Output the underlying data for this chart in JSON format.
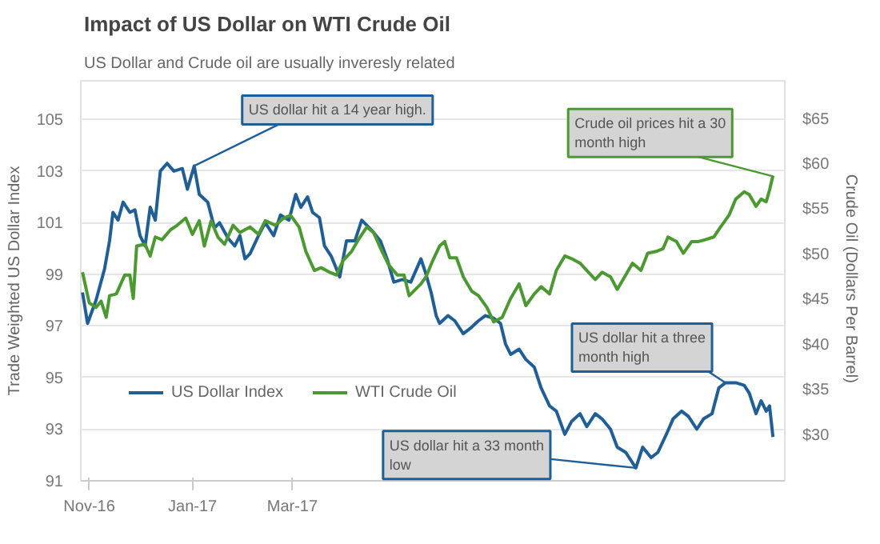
{
  "chart_data": {
    "type": "line",
    "title": "Impact of US Dollar on WTI Crude Oil",
    "subtitle": "US Dollar and Crude oil are usually inveresly related",
    "ylabel": "Trade Weighted US Dollar Index",
    "y2label": "Crude Oil (Dollars  Per Barrel)",
    "xlim": [
      "2016-10-27",
      "2017-12-17"
    ],
    "xticks": [
      {
        "value": "2016-11-01",
        "label": "Nov-16"
      },
      {
        "value": "2017-01-01",
        "label": "Jan-17"
      },
      {
        "value": "2017-03-01",
        "label": "Mar-17"
      }
    ],
    "ylim": [
      91,
      106.5
    ],
    "yticks": [
      91,
      93,
      95,
      97,
      99,
      101,
      103,
      105
    ],
    "y2lim": [
      25,
      69.3
    ],
    "y2ticks": [
      {
        "value": 30,
        "label": "$30"
      },
      {
        "value": 35,
        "label": "$35"
      },
      {
        "value": 40,
        "label": "$40"
      },
      {
        "value": 45,
        "label": "$45"
      },
      {
        "value": 50,
        "label": "$50"
      },
      {
        "value": 55,
        "label": "$55"
      },
      {
        "value": 60,
        "label": "$60"
      },
      {
        "value": 65,
        "label": "$65"
      }
    ],
    "grid": "y",
    "legend": "bottom left",
    "line_style": "solid",
    "series": [
      {
        "name": "US Dollar Index",
        "color": "#1f5f99",
        "x": [
          "2016-10-28",
          "2016-10-31",
          "2016-11-05",
          "2016-11-10",
          "2016-11-13",
          "2016-11-15",
          "2016-11-18",
          "2016-11-21",
          "2016-11-25",
          "2016-11-28",
          "2016-12-01",
          "2016-12-04",
          "2016-12-07",
          "2016-12-10",
          "2016-12-13",
          "2016-12-17",
          "2016-12-21",
          "2016-12-26",
          "2016-12-29",
          "2017-01-02",
          "2017-01-05",
          "2017-01-10",
          "2017-01-14",
          "2017-01-17",
          "2017-01-22",
          "2017-01-26",
          "2017-01-29",
          "2017-02-01",
          "2017-02-04",
          "2017-02-09",
          "2017-02-13",
          "2017-02-18",
          "2017-02-22",
          "2017-02-27",
          "2017-03-03",
          "2017-03-06",
          "2017-03-10",
          "2017-03-13",
          "2017-03-17",
          "2017-03-20",
          "2017-03-24",
          "2017-03-29",
          "2017-04-02",
          "2017-04-07",
          "2017-04-11",
          "2017-04-17",
          "2017-04-22",
          "2017-04-26",
          "2017-04-30",
          "2017-05-05",
          "2017-05-10",
          "2017-05-16",
          "2017-05-19",
          "2017-05-22",
          "2017-05-25",
          "2017-05-27",
          "2017-06-01",
          "2017-06-05",
          "2017-06-10",
          "2017-06-14",
          "2017-06-19",
          "2017-06-23",
          "2017-06-28",
          "2017-07-02",
          "2017-07-05",
          "2017-07-08",
          "2017-07-13",
          "2017-07-17",
          "2017-07-22",
          "2017-07-26",
          "2017-07-31",
          "2017-08-04",
          "2017-08-09",
          "2017-08-13",
          "2017-08-18",
          "2017-08-22",
          "2017-08-27",
          "2017-08-31",
          "2017-09-05",
          "2017-09-09",
          "2017-09-14",
          "2017-09-20",
          "2017-09-24",
          "2017-09-29",
          "2017-10-03",
          "2017-10-08",
          "2017-10-12",
          "2017-10-17",
          "2017-10-21",
          "2017-10-26",
          "2017-10-30",
          "2017-11-04",
          "2017-11-08",
          "2017-11-12",
          "2017-11-18",
          "2017-11-23",
          "2017-11-26",
          "2017-11-30",
          "2017-12-03",
          "2017-12-06",
          "2017-12-08",
          "2017-12-10"
        ],
        "values": [
          98.3,
          97.1,
          98.0,
          99.2,
          100.3,
          101.4,
          101.1,
          101.8,
          101.4,
          101.5,
          100.5,
          100.1,
          101.6,
          101.1,
          103.0,
          103.3,
          103.0,
          103.1,
          102.3,
          103.2,
          102.1,
          101.8,
          100.8,
          101.0,
          100.4,
          100.1,
          100.5,
          99.6,
          99.8,
          100.5,
          101.0,
          100.5,
          101.3,
          101.1,
          102.1,
          101.6,
          102.0,
          101.4,
          101.2,
          100.1,
          99.7,
          98.9,
          100.3,
          100.3,
          101.1,
          100.7,
          100.3,
          99.6,
          98.7,
          98.8,
          98.7,
          99.6,
          99.0,
          98.3,
          97.4,
          97.1,
          97.4,
          97.2,
          96.7,
          96.9,
          97.2,
          97.4,
          97.3,
          97.1,
          96.3,
          95.9,
          96.1,
          95.7,
          95.4,
          94.6,
          93.9,
          93.7,
          92.8,
          93.3,
          93.6,
          93.1,
          93.6,
          93.4,
          93.0,
          92.3,
          92.1,
          91.5,
          92.3,
          91.9,
          92.1,
          92.8,
          93.4,
          93.7,
          93.5,
          93.0,
          93.4,
          93.6,
          94.6,
          94.8,
          94.8,
          94.7,
          94.4,
          93.6,
          94.1,
          93.7,
          93.9,
          92.7
        ]
      },
      {
        "name": "WTI Crude Oil",
        "color": "#4a9a2f",
        "axis": "y2",
        "x": [
          "2016-10-28",
          "2016-11-01",
          "2016-11-05",
          "2016-11-08",
          "2016-11-11",
          "2016-11-13",
          "2016-11-17",
          "2016-11-22",
          "2016-11-25",
          "2016-11-27",
          "2016-11-29",
          "2016-12-04",
          "2016-12-07",
          "2016-12-10",
          "2016-12-14",
          "2016-12-19",
          "2016-12-23",
          "2016-12-28",
          "2017-01-01",
          "2017-01-05",
          "2017-01-08",
          "2017-01-12",
          "2017-01-16",
          "2017-01-20",
          "2017-01-25",
          "2017-01-29",
          "2017-02-04",
          "2017-02-09",
          "2017-02-13",
          "2017-02-19",
          "2017-02-24",
          "2017-02-28",
          "2017-03-05",
          "2017-03-09",
          "2017-03-14",
          "2017-03-18",
          "2017-03-23",
          "2017-03-27",
          "2017-03-31",
          "2017-04-05",
          "2017-04-09",
          "2017-04-14",
          "2017-04-18",
          "2017-04-23",
          "2017-04-27",
          "2017-05-02",
          "2017-05-06",
          "2017-05-09",
          "2017-05-16",
          "2017-05-19",
          "2017-05-23",
          "2017-05-27",
          "2017-05-30",
          "2017-06-02",
          "2017-06-06",
          "2017-06-10",
          "2017-06-15",
          "2017-06-19",
          "2017-06-24",
          "2017-06-28",
          "2017-07-03",
          "2017-07-08",
          "2017-07-13",
          "2017-07-17",
          "2017-07-22",
          "2017-07-26",
          "2017-07-31",
          "2017-08-04",
          "2017-08-09",
          "2017-08-13",
          "2017-08-18",
          "2017-08-22",
          "2017-08-27",
          "2017-08-31",
          "2017-09-05",
          "2017-09-09",
          "2017-09-14",
          "2017-09-18",
          "2017-09-23",
          "2017-09-27",
          "2017-10-02",
          "2017-10-06",
          "2017-10-09",
          "2017-10-14",
          "2017-10-18",
          "2017-10-23",
          "2017-10-27",
          "2017-10-31",
          "2017-11-05",
          "2017-11-09",
          "2017-11-14",
          "2017-11-18",
          "2017-11-23",
          "2017-11-26",
          "2017-11-30",
          "2017-12-03",
          "2017-12-06",
          "2017-12-08",
          "2017-12-10"
        ],
        "values": [
          48.1,
          44.7,
          44.2,
          44.9,
          43.1,
          45.5,
          45.7,
          47.8,
          47.8,
          45.2,
          51.0,
          51.2,
          49.9,
          52.0,
          51.7,
          52.8,
          53.3,
          54.1,
          52.3,
          53.8,
          51.0,
          53.8,
          52.0,
          51.2,
          53.3,
          52.5,
          53.1,
          52.3,
          53.8,
          53.3,
          54.1,
          54.4,
          53.1,
          50.4,
          48.3,
          48.6,
          48.1,
          47.8,
          49.4,
          50.4,
          51.7,
          53.1,
          52.5,
          50.4,
          48.9,
          47.8,
          47.8,
          45.5,
          46.8,
          47.6,
          49.4,
          51.0,
          51.5,
          49.7,
          49.7,
          47.6,
          46.0,
          45.5,
          44.2,
          42.6,
          43.1,
          45.2,
          46.8,
          44.4,
          45.7,
          46.5,
          45.7,
          48.3,
          49.9,
          49.6,
          49.1,
          48.3,
          47.3,
          48.1,
          47.6,
          46.2,
          47.8,
          49.1,
          48.3,
          50.2,
          50.4,
          50.7,
          52.0,
          51.5,
          50.2,
          51.5,
          51.5,
          51.7,
          52.0,
          53.1,
          54.4,
          56.2,
          57.0,
          56.7,
          55.4,
          56.2,
          55.9,
          57.2,
          58.8
        ]
      }
    ],
    "annotations": [
      {
        "text": "US dollar hit a 14 year high.",
        "x": "2017-01-02",
        "y": 103.2
      },
      {
        "text": "Crude oil prices hit a 30 month high",
        "x": "2017-12-10",
        "y": 102.8
      },
      {
        "text": "US dollar hit a three month high",
        "x": "2017-11-12",
        "y": 94.8
      },
      {
        "text": "US dollar hit a 33 month low",
        "x": "2017-09-20",
        "y": 91.5
      }
    ]
  }
}
